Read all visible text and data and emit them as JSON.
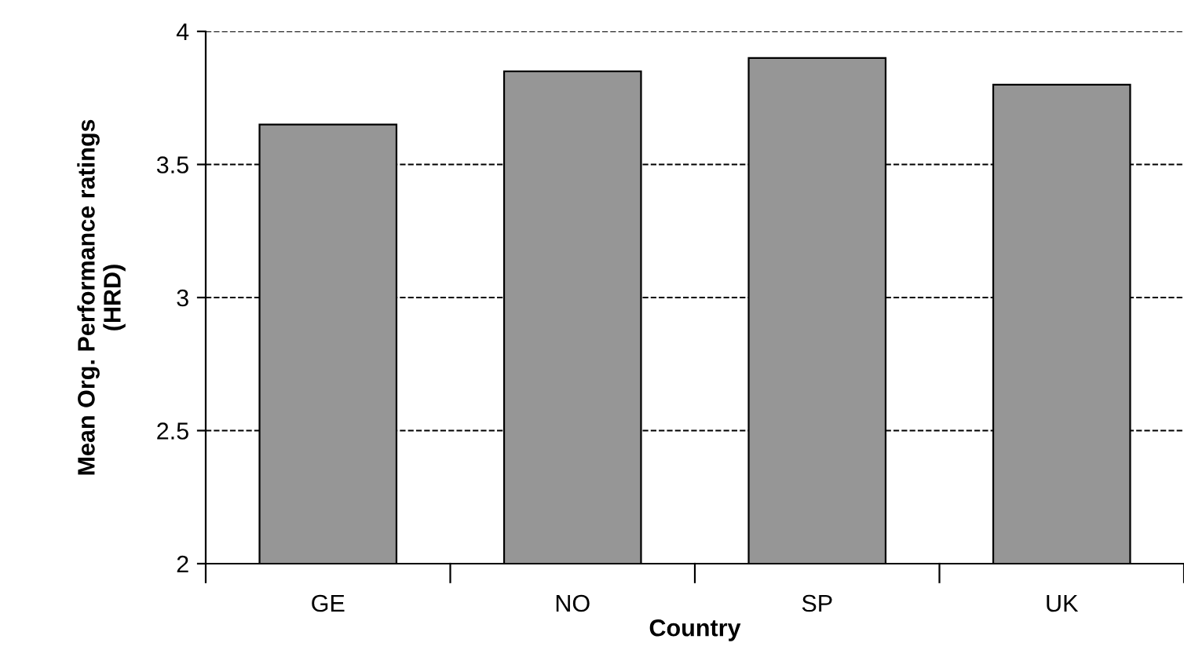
{
  "chart_data": {
    "type": "bar",
    "xlabel": "Country",
    "ylabel": "Mean Org. Performance ratings\n(HRD)",
    "categories": [
      "GE",
      "NO",
      "SP",
      "UK"
    ],
    "values": [
      3.65,
      3.85,
      3.9,
      3.8
    ],
    "color": "#969696",
    "ylim": [
      2,
      4
    ],
    "yticks": [
      2,
      2.5,
      3,
      3.5,
      4
    ],
    "grid": "y",
    "line_style": "dashed"
  }
}
